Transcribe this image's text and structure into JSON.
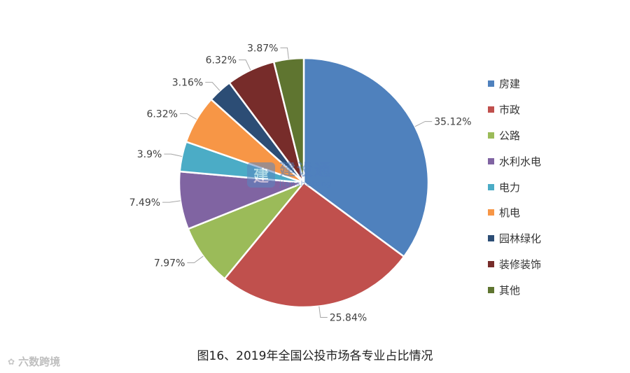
{
  "chart_data": {
    "type": "pie",
    "title": "图16、2019年全国公投市场各专业占比情况",
    "slices": [
      {
        "name": "房建",
        "value": 35.12,
        "label": "35.12%",
        "color": "#4f81bd"
      },
      {
        "name": "市政",
        "value": 25.84,
        "label": "25.84%",
        "color": "#c0504d"
      },
      {
        "name": "公路",
        "value": 7.97,
        "label": "7.97%",
        "color": "#9bbb59"
      },
      {
        "name": "水利水电",
        "value": 7.49,
        "label": "7.49%",
        "color": "#8064a2"
      },
      {
        "name": "电力",
        "value": 3.9,
        "label": "3.9%",
        "color": "#4bacc6"
      },
      {
        "name": "机电",
        "value": 6.32,
        "label": "6.32%",
        "color": "#f79646"
      },
      {
        "name": "园林绿化",
        "value": 3.16,
        "label": "3.16%",
        "color": "#2c4d75"
      },
      {
        "name": "装修装饰",
        "value": 6.32,
        "label": "6.32%",
        "color": "#772c2a"
      },
      {
        "name": "其他",
        "value": 3.87,
        "label": "3.87%",
        "color": "#5f7530"
      }
    ],
    "start_angle": "12 o'clock",
    "direction": "clockwise",
    "legend_position": "right"
  },
  "watermark": {
    "center_logo_text": "建",
    "center_name": "建设通",
    "center_sub": "jianshetong",
    "brand_icon": "lotus-icon",
    "brand_text": "六数跨境"
  }
}
